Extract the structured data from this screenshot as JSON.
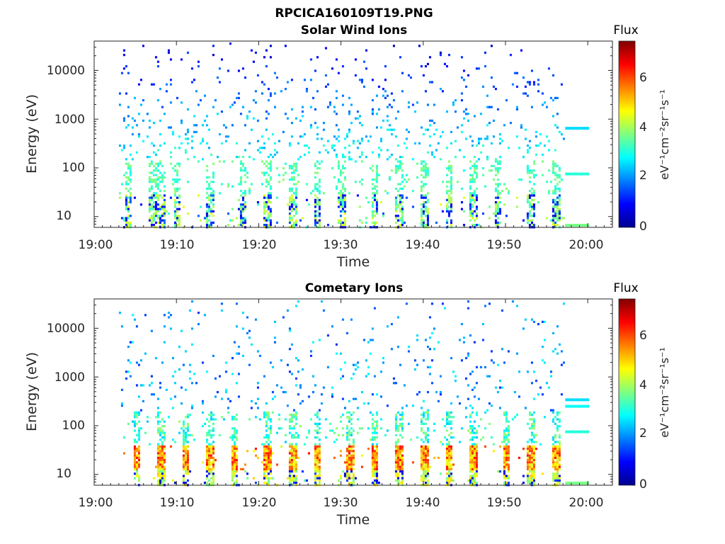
{
  "figure_title": "RPCICA160109T19.PNG",
  "colors": {
    "colormap": [
      "#00008f",
      "#0000ff",
      "#0080ff",
      "#00ffff",
      "#80ff80",
      "#ffff00",
      "#ff8000",
      "#ff0000",
      "#800000"
    ]
  },
  "chart_data": [
    {
      "type": "heatmap",
      "title": "Solar Wind Ions",
      "xlabel": "Time",
      "ylabel": "Energy (eV)",
      "xlim": [
        "19:00",
        "20:03"
      ],
      "ylim": [
        6,
        40000
      ],
      "yscale": "log",
      "xticks": [
        "19:00",
        "19:10",
        "19:20",
        "19:30",
        "19:40",
        "19:50",
        "20:00"
      ],
      "yticks": [
        "10",
        "100",
        "1000",
        "10000"
      ],
      "colorbar": {
        "title": "Flux",
        "label": "eV⁻¹cm⁻²sr⁻¹s⁻¹",
        "range": [
          0,
          7.3
        ],
        "ticks": [
          "0",
          "2",
          "4",
          "6"
        ]
      },
      "data_range": [
        "19:03",
        "19:57"
      ],
      "bursts": [
        "19:04",
        "19:07",
        "19:08",
        "19:10",
        "19:14",
        "19:18",
        "19:21",
        "19:24",
        "19:27",
        "19:30",
        "19:34",
        "19:37",
        "19:40",
        "19:43",
        "19:46",
        "19:49",
        "19:53",
        "19:56"
      ],
      "energy_bands_after": [
        {
          "energy": 650,
          "flux": 2.5
        },
        {
          "energy": 75,
          "flux": 3.0
        },
        {
          "energy": 6,
          "flux": 3.6
        }
      ]
    },
    {
      "type": "heatmap",
      "title": "Cometary Ions",
      "xlabel": "Time",
      "ylabel": "Energy (eV)",
      "xlim": [
        "19:00",
        "20:03"
      ],
      "ylim": [
        6,
        40000
      ],
      "yscale": "log",
      "xticks": [
        "19:00",
        "19:10",
        "19:20",
        "19:30",
        "19:40",
        "19:50",
        "20:00"
      ],
      "yticks": [
        "10",
        "100",
        "1000",
        "10000"
      ],
      "colorbar": {
        "title": "Flux",
        "label": "eV⁻¹cm⁻²sr⁻¹s⁻¹",
        "range": [
          0,
          7.3
        ],
        "ticks": [
          "0",
          "2",
          "4",
          "6"
        ]
      },
      "data_range": [
        "19:03",
        "19:57"
      ],
      "bursts": [
        "19:05",
        "19:08",
        "19:11",
        "19:14",
        "19:17",
        "19:21",
        "19:24",
        "19:27",
        "19:31",
        "19:34",
        "19:37",
        "19:40",
        "19:43",
        "19:46",
        "19:50",
        "19:53",
        "19:56"
      ],
      "low_energy_peak": [
        15,
        30
      ],
      "energy_bands_after": [
        {
          "energy": 340,
          "flux": 2.5
        },
        {
          "energy": 250,
          "flux": 2.8
        },
        {
          "energy": 75,
          "flux": 3.0
        },
        {
          "energy": 6,
          "flux": 3.6
        }
      ]
    }
  ]
}
